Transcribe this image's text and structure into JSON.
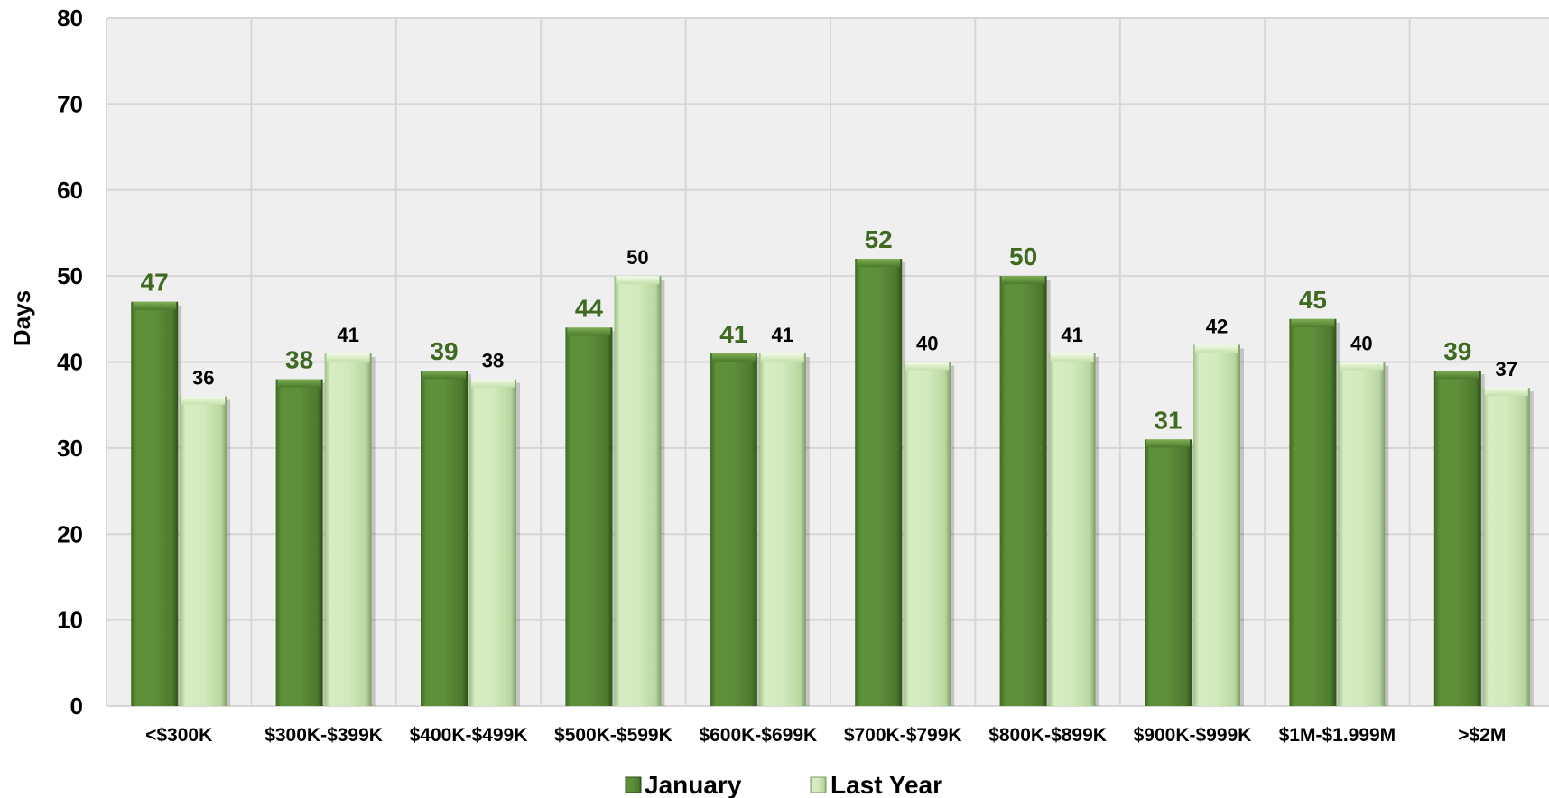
{
  "chart_data": {
    "type": "bar",
    "title": "",
    "xlabel": "",
    "ylabel": "Days",
    "ylim": [
      0,
      80
    ],
    "yticks": [
      0,
      10,
      20,
      30,
      40,
      50,
      60,
      70,
      80
    ],
    "grid": true,
    "legend_position": "bottom",
    "categories": [
      "<$300K",
      "$300K-$399K",
      "$400K-$499K",
      "$500K-$599K",
      "$600K-$699K",
      "$700K-$799K",
      "$800K-$899K",
      "$900K-$999K",
      "$1M-$1.999M",
      ">$2M"
    ],
    "series": [
      {
        "name": "January",
        "values": [
          47,
          38,
          39,
          44,
          41,
          52,
          50,
          31,
          45,
          39
        ],
        "color": "#5a8a38",
        "label_color": "#3f6a22"
      },
      {
        "name": "Last Year",
        "values": [
          36,
          41,
          38,
          50,
          41,
          40,
          41,
          42,
          40,
          37
        ],
        "color": "#cfe8b8",
        "label_color": "#000000"
      }
    ]
  }
}
